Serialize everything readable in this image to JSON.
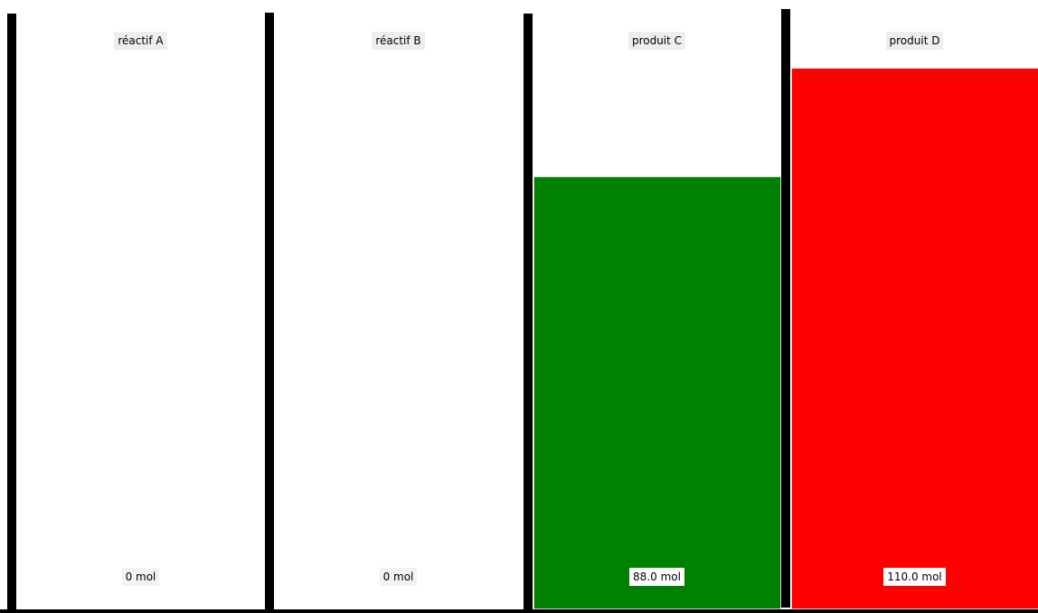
{
  "chart_data": {
    "type": "bar",
    "categories": [
      "réactif A",
      "réactif B",
      "produit C",
      "produit D"
    ],
    "values": [
      0,
      0,
      88.0,
      110.0
    ],
    "value_labels": [
      "0 mol",
      "0 mol",
      "88.0 mol",
      "110.0 mol"
    ],
    "unit": "mol",
    "ylim": [
      0,
      122
    ],
    "colors": [
      "#ffffff",
      "#ffffff",
      "#008000",
      "#ff0000"
    ],
    "grid": false,
    "legend": "none"
  }
}
